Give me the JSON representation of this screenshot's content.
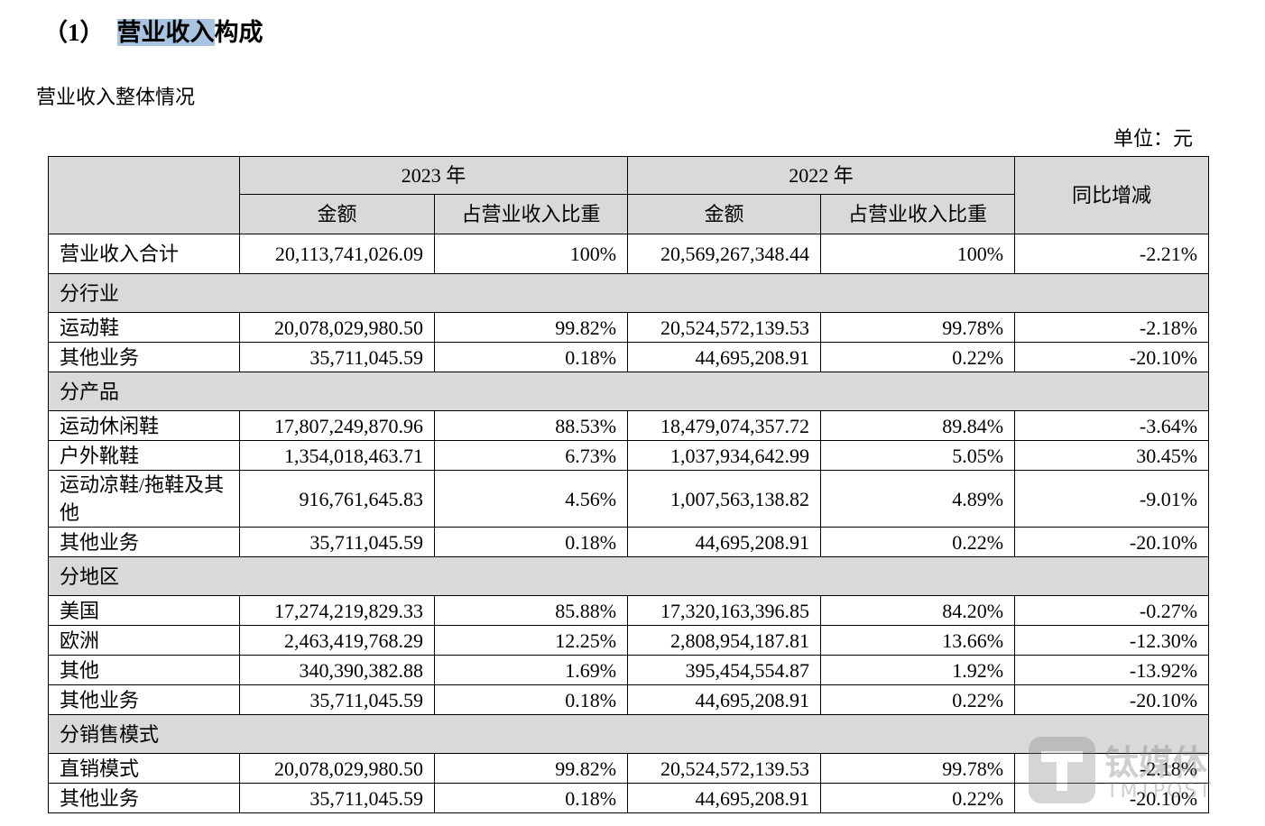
{
  "heading": {
    "number": "（1）",
    "title_highlighted": "营业收入",
    "title_rest": "构成"
  },
  "subtitle": "营业收入整体情况",
  "unit": "单位：元",
  "table": {
    "years": [
      "2023 年",
      "2022 年"
    ],
    "columns": [
      "金额",
      "占营业收入比重",
      "金额",
      "占营业收入比重"
    ],
    "yoy_header": "同比增减",
    "rows": [
      {
        "cells": [
          "营业收入合计",
          "20,113,741,026.09",
          "100%",
          "20,569,267,348.44",
          "100%",
          "-2.21%"
        ]
      },
      {
        "section": "分行业"
      },
      {
        "cells": [
          "运动鞋",
          "20,078,029,980.50",
          "99.82%",
          "20,524,572,139.53",
          "99.78%",
          "-2.18%"
        ]
      },
      {
        "cells": [
          "其他业务",
          "35,711,045.59",
          "0.18%",
          "44,695,208.91",
          "0.22%",
          "-20.10%"
        ]
      },
      {
        "section": "分产品"
      },
      {
        "cells": [
          "运动休闲鞋",
          "17,807,249,870.96",
          "88.53%",
          "18,479,074,357.72",
          "89.84%",
          "-3.64%"
        ]
      },
      {
        "cells": [
          "户外靴鞋",
          "1,354,018,463.71",
          "6.73%",
          "1,037,934,642.99",
          "5.05%",
          "30.45%"
        ]
      },
      {
        "cells": [
          "运动凉鞋/拖鞋及其他",
          "916,761,645.83",
          "4.56%",
          "1,007,563,138.82",
          "4.89%",
          "-9.01%"
        ]
      },
      {
        "cells": [
          "其他业务",
          "35,711,045.59",
          "0.18%",
          "44,695,208.91",
          "0.22%",
          "-20.10%"
        ]
      },
      {
        "section": "分地区"
      },
      {
        "cells": [
          "美国",
          "17,274,219,829.33",
          "85.88%",
          "17,320,163,396.85",
          "84.20%",
          "-0.27%"
        ]
      },
      {
        "cells": [
          "欧洲",
          "2,463,419,768.29",
          "12.25%",
          "2,808,954,187.81",
          "13.66%",
          "-12.30%"
        ]
      },
      {
        "cells": [
          "其他",
          "340,390,382.88",
          "1.69%",
          "395,454,554.87",
          "1.92%",
          "-13.92%"
        ]
      },
      {
        "cells": [
          "其他业务",
          "35,711,045.59",
          "0.18%",
          "44,695,208.91",
          "0.22%",
          "-20.10%"
        ]
      },
      {
        "section": "分销售模式"
      },
      {
        "cells": [
          "直销模式",
          "20,078,029,980.50",
          "99.82%",
          "20,524,572,139.53",
          "99.78%",
          "-2.18%"
        ]
      },
      {
        "cells": [
          "其他业务",
          "35,711,045.59",
          "0.18%",
          "44,695,208.91",
          "0.22%",
          "-20.10%"
        ]
      }
    ]
  },
  "watermark": {
    "brand": "钛媒体",
    "latin": "TMTPOST"
  }
}
